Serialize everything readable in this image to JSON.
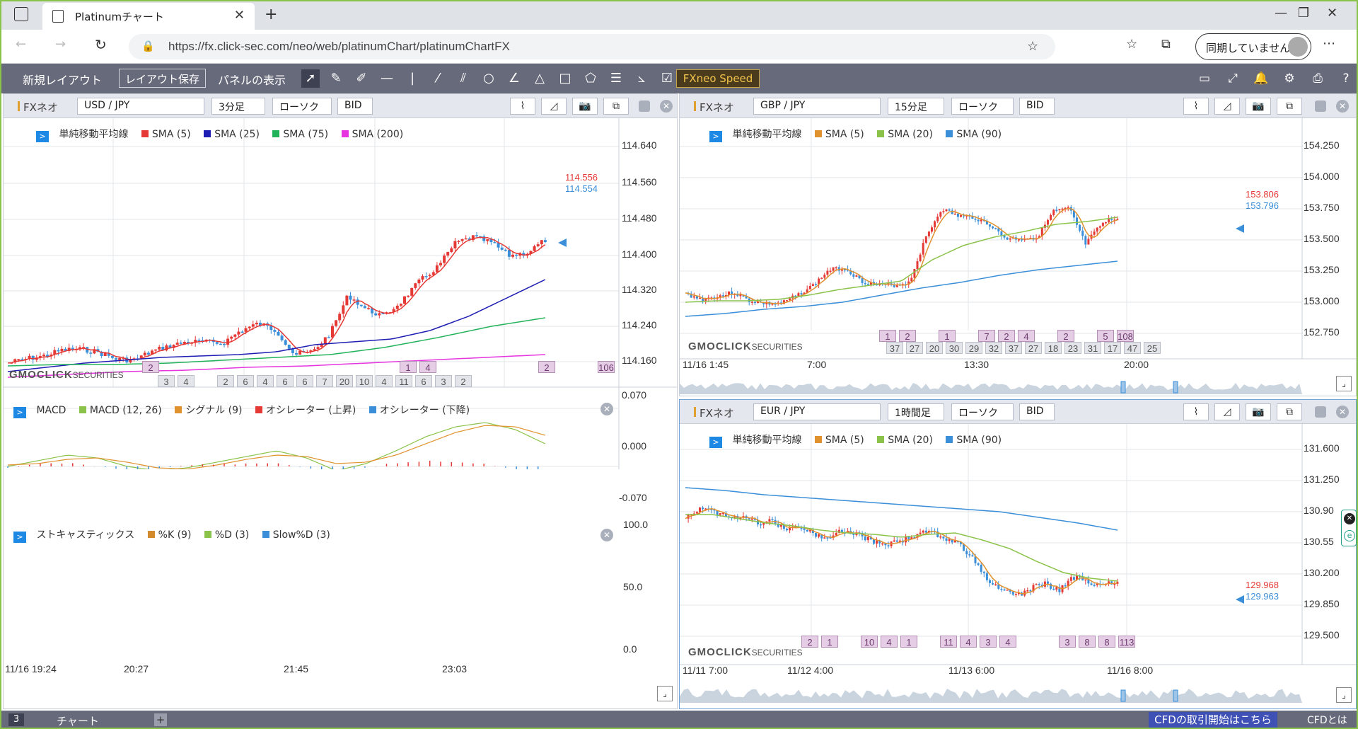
{
  "browser": {
    "tab_title": "Platinumチャート",
    "url": "https://fx.click-sec.com/neo/web/platinumChart/platinumChartFX",
    "sync_label": "同期していません"
  },
  "toolbar": {
    "new_layout": "新規レイアウト",
    "save_layout": "レイアウト保存",
    "panel_display": "パネルの表示",
    "speed": "FXneo Speed"
  },
  "brand": "GMOCLICK",
  "brand_suffix": "SECURITIES",
  "panels": {
    "usdjpy": {
      "platform": "FXネオ",
      "pair": "USD / JPY",
      "timeframe": "3分足",
      "chart_type": "ローソク",
      "price_side": "BID",
      "legend_title": "単純移動平均線",
      "sma": [
        {
          "label": "SMA (5)",
          "color": "#e53935"
        },
        {
          "label": "SMA (25)",
          "color": "#1e1eb4"
        },
        {
          "label": "SMA (75)",
          "color": "#22b35a"
        },
        {
          "label": "SMA (200)",
          "color": "#e534e0"
        }
      ],
      "y_ticks": [
        "114.640",
        "114.560",
        "114.480",
        "114.400",
        "114.320",
        "114.240",
        "114.160"
      ],
      "ask": "114.556",
      "bid": "114.554",
      "counts_top": [
        "",
        "",
        "",
        "",
        "",
        "",
        "",
        "",
        "",
        "",
        "",
        "",
        "",
        "",
        "2",
        "",
        "",
        "",
        "",
        "",
        "",
        "",
        "",
        "",
        "",
        "",
        "",
        "1",
        "4",
        "",
        "",
        "",
        "",
        "",
        "2",
        "",
        "",
        "106"
      ],
      "counts_bottom": [
        "3",
        "4",
        "",
        "2",
        "6",
        "4",
        "6",
        "6",
        "7",
        "20",
        "10",
        "4",
        "11",
        "6",
        "3",
        "2"
      ],
      "macd": {
        "title": "MACD",
        "legend": [
          "MACD (12, 26)",
          "シグナル (9)",
          "オシレーター (上昇)",
          "オシレーター (下降)"
        ],
        "legend_colors": [
          "#8bc34a",
          "#e0922e",
          "#e53935",
          "#3b8fd9"
        ],
        "y_ticks": [
          "0.070",
          "0.000",
          "-0.070"
        ]
      },
      "stoch": {
        "title": "ストキャスティックス",
        "legend": [
          "%K (9)",
          "%D (3)",
          "Slow%D (3)"
        ],
        "legend_colors": [
          "#d28a2c",
          "#8bc34a",
          "#3b8fd9"
        ],
        "y_ticks": [
          "100.0",
          "50.0",
          "0.0"
        ]
      },
      "x_ticks": [
        "11/16 19:24",
        "20:27",
        "21:45",
        "23:03"
      ]
    },
    "gbpjpy": {
      "platform": "FXネオ",
      "pair": "GBP / JPY",
      "timeframe": "15分足",
      "chart_type": "ローソク",
      "price_side": "BID",
      "legend_title": "単純移動平均線",
      "sma": [
        {
          "label": "SMA (5)",
          "color": "#e0922e"
        },
        {
          "label": "SMA (20)",
          "color": "#8bc34a"
        },
        {
          "label": "SMA (90)",
          "color": "#3b8fd9"
        }
      ],
      "y_ticks": [
        "154.250",
        "154.000",
        "153.750",
        "153.500",
        "153.250",
        "153.000",
        "152.750"
      ],
      "ask": "153.806",
      "bid": "153.796",
      "counts_top": [
        "1",
        "2",
        "",
        "1",
        "",
        "7",
        "2",
        "4",
        "",
        "2",
        "",
        "5",
        "108"
      ],
      "counts_bottom": [
        "37",
        "27",
        "20",
        "30",
        "29",
        "32",
        "37",
        "27",
        "18",
        "23",
        "31",
        "17",
        "47",
        "25"
      ],
      "x_ticks": [
        "11/16 1:45",
        "7:00",
        "13:30",
        "20:00"
      ]
    },
    "eurjpy": {
      "platform": "FXネオ",
      "pair": "EUR / JPY",
      "timeframe": "1時間足",
      "chart_type": "ローソク",
      "price_side": "BID",
      "legend_title": "単純移動平均線",
      "sma": [
        {
          "label": "SMA (5)",
          "color": "#e0922e"
        },
        {
          "label": "SMA (20)",
          "color": "#8bc34a"
        },
        {
          "label": "SMA (90)",
          "color": "#3b8fd9"
        }
      ],
      "y_ticks": [
        "131.600",
        "131.250",
        "130.90",
        "130.55",
        "130.200",
        "129.850",
        "129.500"
      ],
      "ask": "129.968",
      "bid": "129.963",
      "counts_top": [
        "2",
        "1",
        "",
        "10",
        "4",
        "1",
        "",
        "11",
        "4",
        "3",
        "4",
        "",
        "",
        "3",
        "8",
        "8",
        "113"
      ],
      "x_ticks": [
        "11/11 7:00",
        "11/12 4:00",
        "11/13 6:00",
        "11/16 8:00"
      ]
    }
  },
  "statusbar": {
    "count": "3",
    "tab": "チャート",
    "cfd_start": "CFDの取引開始はこちら",
    "cfd_about": "CFDとは"
  }
}
